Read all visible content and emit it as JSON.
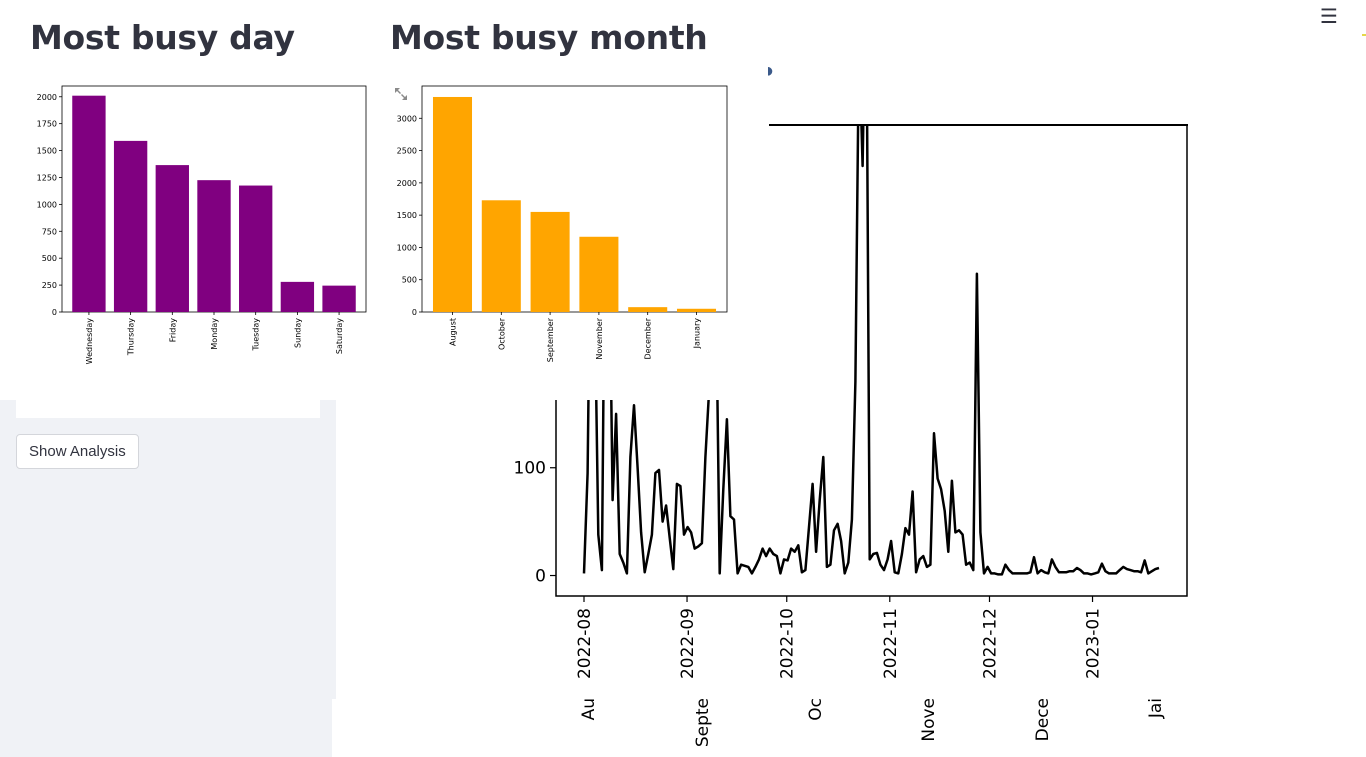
{
  "header": {
    "menu_icon": "hamburger-menu-icon"
  },
  "sidebar": {
    "show_analysis_label": "Show Analysis"
  },
  "busy_day": {
    "title": "Most busy day",
    "chart_data": {
      "type": "bar",
      "categories": [
        "Wednesday",
        "Thursday",
        "Friday",
        "Monday",
        "Tuesday",
        "Sunday",
        "Saturday"
      ],
      "values": [
        2010,
        1590,
        1365,
        1225,
        1175,
        280,
        245
      ],
      "ylim": [
        0,
        2100
      ],
      "yticks": [
        0,
        250,
        500,
        750,
        1000,
        1250,
        1500,
        1750,
        2000
      ],
      "color": "#800080",
      "grid": false
    }
  },
  "busy_month": {
    "title": "Most busy month",
    "expand_icon": "expand-icon",
    "chart_data": {
      "type": "bar",
      "categories": [
        "August",
        "October",
        "September",
        "November",
        "December",
        "January"
      ],
      "values": [
        3330,
        1730,
        1550,
        1165,
        75,
        50
      ],
      "ylim": [
        0,
        3500
      ],
      "yticks": [
        0,
        500,
        1000,
        1500,
        2000,
        2500,
        3000
      ],
      "color": "#ffa500",
      "grid": false
    }
  },
  "timeline": {
    "chart_data": {
      "type": "line",
      "color": "#000000",
      "ylim": [
        -19,
        418
      ],
      "yticks": [
        0,
        100
      ],
      "xticks": [
        "2022-08",
        "2022-09",
        "2022-10",
        "2022-11",
        "2022-12",
        "2023-01"
      ],
      "month_labels": [
        "Au",
        "Septe",
        "Oc",
        "Nove",
        "Dece",
        "Jai"
      ],
      "x_start": "2022-08-01",
      "x_end": "2023-01-21",
      "values": [
        2,
        95,
        380,
        260,
        38,
        5,
        380,
        330,
        70,
        150,
        20,
        12,
        2,
        110,
        158,
        100,
        40,
        3,
        20,
        38,
        95,
        98,
        50,
        65,
        35,
        6,
        85,
        83,
        38,
        45,
        40,
        25,
        27,
        30,
        110,
        170,
        380,
        260,
        2,
        80,
        145,
        55,
        52,
        2,
        10,
        9,
        8,
        2,
        8,
        15,
        25,
        18,
        25,
        20,
        18,
        2,
        15,
        14,
        25,
        22,
        28,
        3,
        5,
        45,
        85,
        22,
        70,
        110,
        8,
        10,
        42,
        48,
        32,
        2,
        12,
        52,
        180,
        500,
        380,
        580,
        15,
        20,
        21,
        10,
        5,
        15,
        32,
        3,
        2,
        20,
        44,
        38,
        78,
        3,
        15,
        18,
        8,
        10,
        132,
        90,
        80,
        60,
        22,
        88,
        40,
        42,
        38,
        10,
        12,
        5,
        280,
        40,
        2,
        8,
        2,
        2,
        1,
        1,
        10,
        5,
        2,
        2,
        2,
        2,
        2,
        3,
        17,
        2,
        5,
        3,
        2,
        15,
        8,
        3,
        3,
        3,
        4,
        4,
        7,
        5,
        2,
        2,
        1,
        2,
        3,
        11,
        4,
        2,
        2,
        2,
        5,
        8,
        6,
        5,
        4,
        4,
        3,
        14,
        2,
        4,
        6,
        7
      ]
    }
  }
}
